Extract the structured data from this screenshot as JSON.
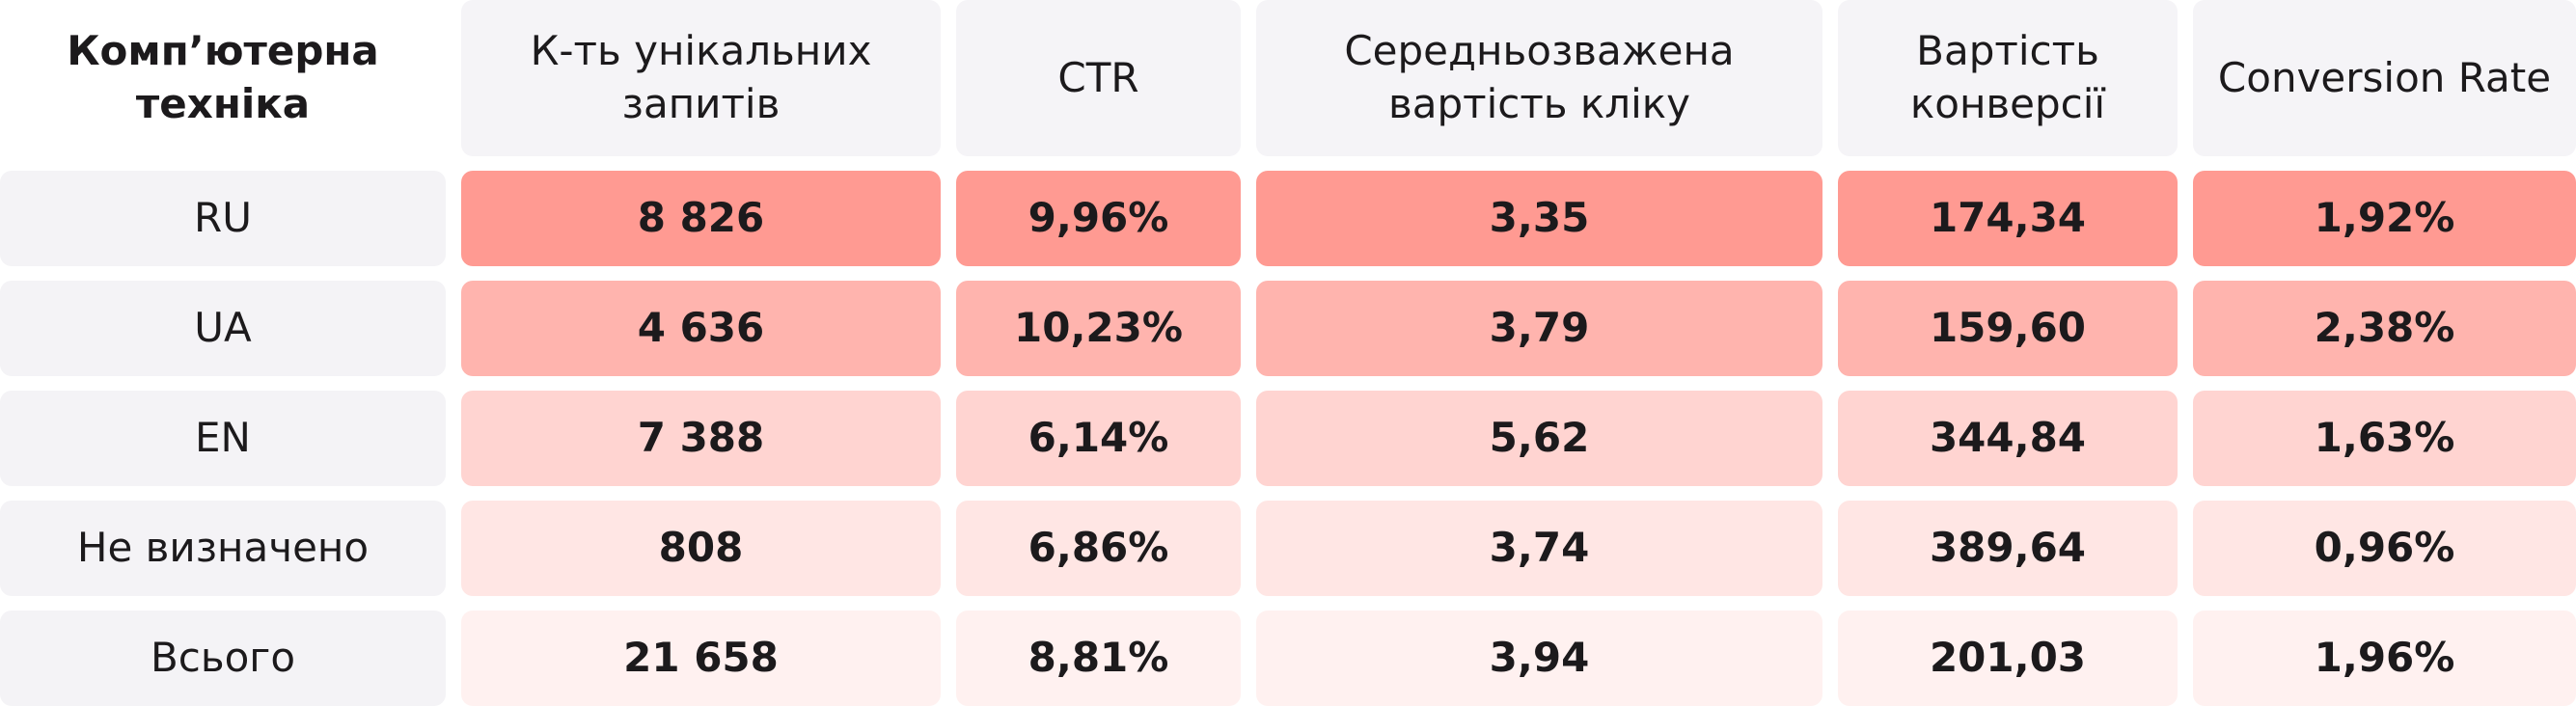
{
  "table": {
    "header": [
      "Комп’ютерна техніка",
      "К-ть унікальних запитів",
      "CTR",
      "Середньозважена вартість кліку",
      "Вартість конверсії",
      "Conversion Rate"
    ],
    "rows": [
      [
        "RU",
        "8 826",
        "9,96%",
        "3,35",
        "174,34",
        "1,92%"
      ],
      [
        "UA",
        "4 636",
        "10,23%",
        "3,79",
        "159,60",
        "2,38%"
      ],
      [
        "EN",
        "7 388",
        "6,14%",
        "5,62",
        "344,84",
        "1,63%"
      ],
      [
        "Не визначено",
        "808",
        "6,86%",
        "3,74",
        "389,64",
        "0,96%"
      ],
      [
        "Всього",
        "21 658",
        "8,81%",
        "3,94",
        "201,03",
        "1,96%"
      ]
    ]
  }
}
